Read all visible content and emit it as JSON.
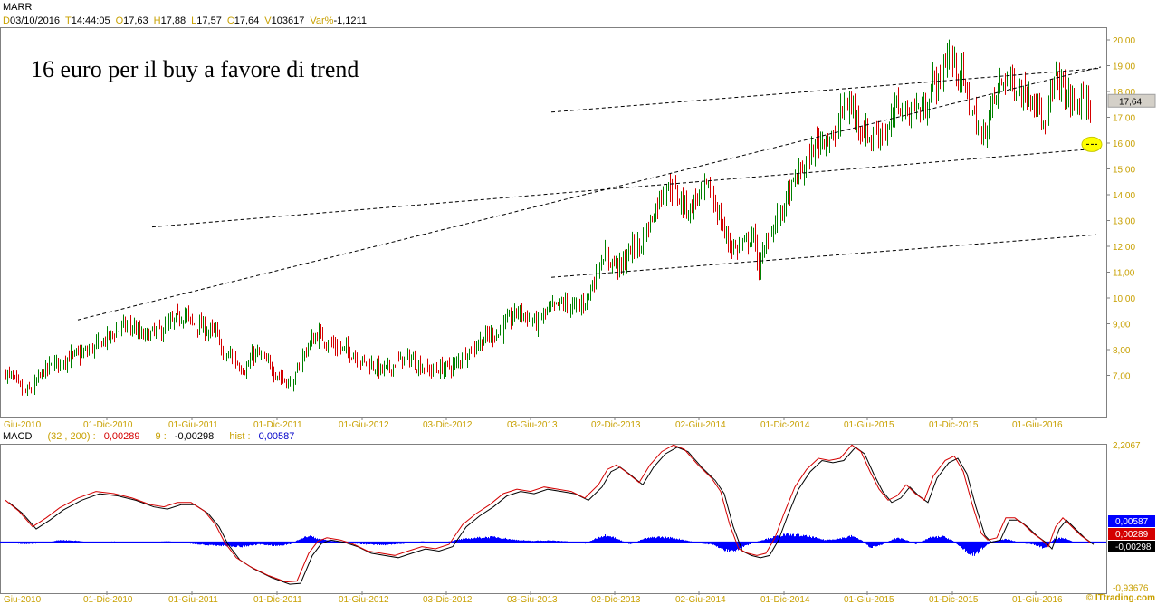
{
  "header": {
    "symbol": "MARR",
    "fields": [
      {
        "k": "D",
        "v": "03/10/2016"
      },
      {
        "k": "T",
        "v": "14:44:05"
      },
      {
        "k": "O",
        "v": "17,63"
      },
      {
        "k": "H",
        "v": "17,88"
      },
      {
        "k": "L",
        "v": "17,57"
      },
      {
        "k": "C",
        "v": "17,64"
      },
      {
        "k": "V",
        "v": "103617"
      },
      {
        "k": "Var%",
        "v": "-1,1211"
      }
    ]
  },
  "annotation": "16 euro per il buy a favore di trend",
  "macd_header": {
    "name": "MACD",
    "params": "(32 , 200) :",
    "macd_value": "0,00289",
    "signal_label": "9 :",
    "signal_value": "-0,00298",
    "hist_label": "hist :",
    "hist_value": "0,00587"
  },
  "credit": "© ITtrading.com",
  "colors": {
    "up_candle": "#008000",
    "down_candle": "#d40000",
    "axis_labels": "#c8a000",
    "macd_line": "#d40000",
    "signal_line": "#000000",
    "histogram": "#0000ff",
    "marker": "#ffff00"
  },
  "chart_data": [
    {
      "type": "candlestick",
      "title": "MARR",
      "x_tick_labels": [
        "Giu-2010",
        "01-Dic-2010",
        "01-Giu-2011",
        "01-Dic-2011",
        "01-Giu-2012",
        "03-Dic-2012",
        "03-Giu-2013",
        "02-Dic-2013",
        "02-Giu-2014",
        "01-Dic-2014",
        "01-Giu-2015",
        "01-Dic-2015",
        "01-Giu-2016"
      ],
      "y_tick_labels": [
        "20,00",
        "19,00",
        "18,00",
        "17,00",
        "16,00",
        "15,00",
        "14,00",
        "13,00",
        "12,00",
        "11,00",
        "10,00",
        "9,00",
        "8,00",
        "7,00"
      ],
      "ylim": [
        6.0,
        20.4
      ],
      "last_price_label": "17,64",
      "last_price": 17.64,
      "price_path": [
        [
          0,
          7.1
        ],
        [
          10,
          6.8
        ],
        [
          20,
          6.3
        ],
        [
          30,
          6.5
        ],
        [
          40,
          7.1
        ],
        [
          55,
          7.5
        ],
        [
          70,
          7.7
        ],
        [
          90,
          7.9
        ],
        [
          110,
          8.4
        ],
        [
          130,
          8.9
        ],
        [
          140,
          8.9
        ],
        [
          150,
          8.5
        ],
        [
          160,
          8.6
        ],
        [
          175,
          8.8
        ],
        [
          190,
          9.2
        ],
        [
          198,
          9.4
        ],
        [
          205,
          9.0
        ],
        [
          215,
          8.9
        ],
        [
          225,
          8.7
        ],
        [
          235,
          8.6
        ],
        [
          240,
          7.6
        ],
        [
          248,
          7.8
        ],
        [
          255,
          7.5
        ],
        [
          265,
          7.2
        ],
        [
          275,
          7.9
        ],
        [
          285,
          7.6
        ],
        [
          295,
          7.2
        ],
        [
          305,
          6.9
        ],
        [
          318,
          6.6
        ],
        [
          325,
          7.5
        ],
        [
          335,
          8.2
        ],
        [
          345,
          8.6
        ],
        [
          355,
          8.3
        ],
        [
          365,
          8.1
        ],
        [
          375,
          8.0
        ],
        [
          385,
          7.8
        ],
        [
          395,
          7.5
        ],
        [
          405,
          7.4
        ],
        [
          415,
          7.2
        ],
        [
          425,
          7.3
        ],
        [
          435,
          7.6
        ],
        [
          445,
          7.7
        ],
        [
          455,
          7.4
        ],
        [
          470,
          7.2
        ],
        [
          485,
          7.3
        ],
        [
          497,
          7.4
        ],
        [
          505,
          7.8
        ],
        [
          520,
          8.2
        ],
        [
          535,
          8.6
        ],
        [
          545,
          8.6
        ],
        [
          555,
          9.1
        ],
        [
          565,
          9.5
        ],
        [
          575,
          9.3
        ],
        [
          585,
          9.0
        ],
        [
          595,
          9.4
        ],
        [
          605,
          9.6
        ],
        [
          615,
          9.8
        ],
        [
          625,
          9.6
        ],
        [
          635,
          9.7
        ],
        [
          645,
          10.2
        ],
        [
          652,
          11.0
        ],
        [
          660,
          11.7
        ],
        [
          670,
          11.4
        ],
        [
          680,
          11.2
        ],
        [
          690,
          11.9
        ],
        [
          700,
          12.0
        ],
        [
          710,
          12.8
        ],
        [
          718,
          13.5
        ],
        [
          725,
          14.2
        ],
        [
          735,
          14.3
        ],
        [
          745,
          13.8
        ],
        [
          755,
          13.4
        ],
        [
          765,
          14.0
        ],
        [
          775,
          14.3
        ],
        [
          785,
          13.5
        ],
        [
          795,
          12.4
        ],
        [
          805,
          11.9
        ],
        [
          815,
          12.0
        ],
        [
          825,
          12.5
        ],
        [
          832,
          11.2
        ],
        [
          838,
          11.8
        ],
        [
          845,
          12.6
        ],
        [
          855,
          13.2
        ],
        [
          865,
          14.0
        ],
        [
          875,
          14.8
        ],
        [
          885,
          15.2
        ],
        [
          895,
          16.0
        ],
        [
          905,
          16.3
        ],
        [
          915,
          16.0
        ],
        [
          925,
          17.5
        ],
        [
          935,
          17.4
        ],
        [
          945,
          16.6
        ],
        [
          955,
          16.2
        ],
        [
          965,
          16.5
        ],
        [
          975,
          16.4
        ],
        [
          985,
          17.6
        ],
        [
          995,
          17.1
        ],
        [
          1005,
          17.4
        ],
        [
          1015,
          17.2
        ],
        [
          1025,
          18.5
        ],
        [
          1032,
          18.2
        ],
        [
          1040,
          19.6
        ],
        [
          1048,
          19.0
        ],
        [
          1056,
          18.6
        ],
        [
          1064,
          17.5
        ],
        [
          1072,
          16.8
        ],
        [
          1078,
          16.0
        ],
        [
          1085,
          17.0
        ],
        [
          1095,
          18.0
        ],
        [
          1105,
          18.6
        ],
        [
          1115,
          18.2
        ],
        [
          1125,
          17.9
        ],
        [
          1135,
          18.0
        ],
        [
          1142,
          17.2
        ],
        [
          1148,
          16.2
        ],
        [
          1155,
          18.1
        ],
        [
          1162,
          18.6
        ],
        [
          1170,
          17.9
        ],
        [
          1180,
          17.6
        ],
        [
          1190,
          17.5
        ],
        [
          1198,
          17.64
        ]
      ],
      "trendlines": [
        {
          "from": [
            80,
            9.15
          ],
          "to": [
            1210,
            18.95
          ]
        },
        {
          "from": [
            162,
            12.75
          ],
          "to": [
            1210,
            15.8
          ]
        },
        {
          "from": [
            603,
            17.2
          ],
          "to": [
            1210,
            18.9
          ]
        },
        {
          "from": [
            603,
            10.8
          ],
          "to": [
            1205,
            12.45
          ]
        }
      ],
      "marker": {
        "x": 1200,
        "y": 15.95
      }
    },
    {
      "type": "line",
      "title": "MACD",
      "series": [
        {
          "name": "MACD (32 , 200)",
          "role": "macd"
        },
        {
          "name": "9",
          "role": "signal"
        },
        {
          "name": "hist",
          "role": "histogram"
        }
      ],
      "y_tick_labels": [
        "2,2067",
        "-0,93676"
      ],
      "ylim": [
        -0.93676,
        2.2067
      ],
      "value_labels": [
        {
          "text": "0,00587",
          "color": "#0000ff"
        },
        {
          "text": "0,00289",
          "color": "#d40000"
        },
        {
          "text": "-0,00298",
          "color": "#000000"
        }
      ],
      "macd_path": [
        [
          0,
          0.95
        ],
        [
          15,
          0.7
        ],
        [
          30,
          0.35
        ],
        [
          45,
          0.55
        ],
        [
          60,
          0.78
        ],
        [
          80,
          1.0
        ],
        [
          100,
          1.15
        ],
        [
          120,
          1.1
        ],
        [
          140,
          1.0
        ],
        [
          160,
          0.85
        ],
        [
          175,
          0.8
        ],
        [
          190,
          0.9
        ],
        [
          205,
          0.9
        ],
        [
          220,
          0.7
        ],
        [
          232,
          0.4
        ],
        [
          242,
          0.0
        ],
        [
          255,
          -0.35
        ],
        [
          270,
          -0.55
        ],
        [
          290,
          -0.75
        ],
        [
          310,
          -0.9
        ],
        [
          322,
          -0.88
        ],
        [
          335,
          -0.25
        ],
        [
          345,
          0.02
        ],
        [
          355,
          0.1
        ],
        [
          370,
          0.05
        ],
        [
          385,
          -0.05
        ],
        [
          400,
          -0.2
        ],
        [
          415,
          -0.25
        ],
        [
          430,
          -0.3
        ],
        [
          445,
          -0.2
        ],
        [
          460,
          -0.1
        ],
        [
          475,
          -0.15
        ],
        [
          490,
          -0.05
        ],
        [
          505,
          0.4
        ],
        [
          520,
          0.65
        ],
        [
          535,
          0.85
        ],
        [
          550,
          1.1
        ],
        [
          565,
          1.2
        ],
        [
          580,
          1.15
        ],
        [
          595,
          1.25
        ],
        [
          610,
          1.2
        ],
        [
          625,
          1.15
        ],
        [
          640,
          1.0
        ],
        [
          655,
          1.3
        ],
        [
          665,
          1.65
        ],
        [
          675,
          1.75
        ],
        [
          685,
          1.6
        ],
        [
          700,
          1.35
        ],
        [
          712,
          1.75
        ],
        [
          725,
          2.05
        ],
        [
          738,
          2.2
        ],
        [
          750,
          2.1
        ],
        [
          765,
          1.75
        ],
        [
          780,
          1.45
        ],
        [
          790,
          1.15
        ],
        [
          800,
          0.4
        ],
        [
          810,
          -0.15
        ],
        [
          820,
          -0.25
        ],
        [
          830,
          -0.3
        ],
        [
          840,
          -0.25
        ],
        [
          850,
          0.1
        ],
        [
          860,
          0.65
        ],
        [
          872,
          1.25
        ],
        [
          885,
          1.65
        ],
        [
          898,
          1.9
        ],
        [
          910,
          1.85
        ],
        [
          922,
          1.9
        ],
        [
          935,
          2.2
        ],
        [
          945,
          2.05
        ],
        [
          955,
          1.6
        ],
        [
          965,
          1.2
        ],
        [
          975,
          0.95
        ],
        [
          985,
          1.05
        ],
        [
          995,
          1.3
        ],
        [
          1005,
          1.1
        ],
        [
          1015,
          0.95
        ],
        [
          1025,
          1.5
        ],
        [
          1038,
          1.85
        ],
        [
          1048,
          1.95
        ],
        [
          1058,
          1.6
        ],
        [
          1068,
          0.85
        ],
        [
          1078,
          0.2
        ],
        [
          1085,
          0.05
        ],
        [
          1095,
          0.1
        ],
        [
          1105,
          0.55
        ],
        [
          1115,
          0.55
        ],
        [
          1125,
          0.4
        ],
        [
          1135,
          0.2
        ],
        [
          1145,
          0.05
        ],
        [
          1152,
          -0.1
        ],
        [
          1160,
          0.35
        ],
        [
          1168,
          0.55
        ],
        [
          1178,
          0.35
        ],
        [
          1188,
          0.15
        ],
        [
          1198,
          0.0
        ]
      ],
      "hist_path": [
        [
          0,
          0.0
        ],
        [
          20,
          -0.04
        ],
        [
          40,
          -0.02
        ],
        [
          60,
          0.05
        ],
        [
          80,
          0.03
        ],
        [
          100,
          -0.02
        ],
        [
          120,
          0.02
        ],
        [
          140,
          -0.03
        ],
        [
          160,
          0.01
        ],
        [
          180,
          0.02
        ],
        [
          200,
          -0.02
        ],
        [
          220,
          -0.06
        ],
        [
          240,
          -0.08
        ],
        [
          260,
          -0.1
        ],
        [
          280,
          -0.05
        ],
        [
          300,
          -0.08
        ],
        [
          315,
          -0.04
        ],
        [
          325,
          0.08
        ],
        [
          335,
          0.14
        ],
        [
          345,
          0.08
        ],
        [
          360,
          0.03
        ],
        [
          380,
          -0.02
        ],
        [
          400,
          -0.05
        ],
        [
          420,
          -0.06
        ],
        [
          440,
          -0.03
        ],
        [
          460,
          0.02
        ],
        [
          480,
          -0.02
        ],
        [
          500,
          0.06
        ],
        [
          520,
          0.1
        ],
        [
          540,
          0.12
        ],
        [
          560,
          0.06
        ],
        [
          580,
          0.03
        ],
        [
          600,
          0.04
        ],
        [
          620,
          0.02
        ],
        [
          640,
          -0.03
        ],
        [
          655,
          0.12
        ],
        [
          665,
          0.17
        ],
        [
          675,
          0.08
        ],
        [
          690,
          -0.05
        ],
        [
          705,
          0.08
        ],
        [
          720,
          0.12
        ],
        [
          735,
          0.1
        ],
        [
          750,
          0.05
        ],
        [
          765,
          -0.02
        ],
        [
          780,
          -0.05
        ],
        [
          795,
          -0.18
        ],
        [
          805,
          -0.2
        ],
        [
          815,
          -0.1
        ],
        [
          830,
          0.02
        ],
        [
          845,
          0.1
        ],
        [
          860,
          0.17
        ],
        [
          875,
          0.16
        ],
        [
          890,
          0.12
        ],
        [
          905,
          0.05
        ],
        [
          920,
          0.08
        ],
        [
          935,
          0.14
        ],
        [
          945,
          0.05
        ],
        [
          955,
          -0.12
        ],
        [
          965,
          -0.08
        ],
        [
          975,
          0.02
        ],
        [
          985,
          0.1
        ],
        [
          995,
          0.05
        ],
        [
          1005,
          -0.05
        ],
        [
          1020,
          0.1
        ],
        [
          1035,
          0.13
        ],
        [
          1045,
          0.05
        ],
        [
          1060,
          -0.2
        ],
        [
          1070,
          -0.28
        ],
        [
          1078,
          -0.15
        ],
        [
          1090,
          0.02
        ],
        [
          1105,
          0.07
        ],
        [
          1115,
          0.02
        ],
        [
          1125,
          -0.03
        ],
        [
          1135,
          -0.05
        ],
        [
          1148,
          -0.14
        ],
        [
          1158,
          0.07
        ],
        [
          1168,
          0.1
        ],
        [
          1180,
          0.0
        ],
        [
          1198,
          0.006
        ]
      ]
    }
  ]
}
